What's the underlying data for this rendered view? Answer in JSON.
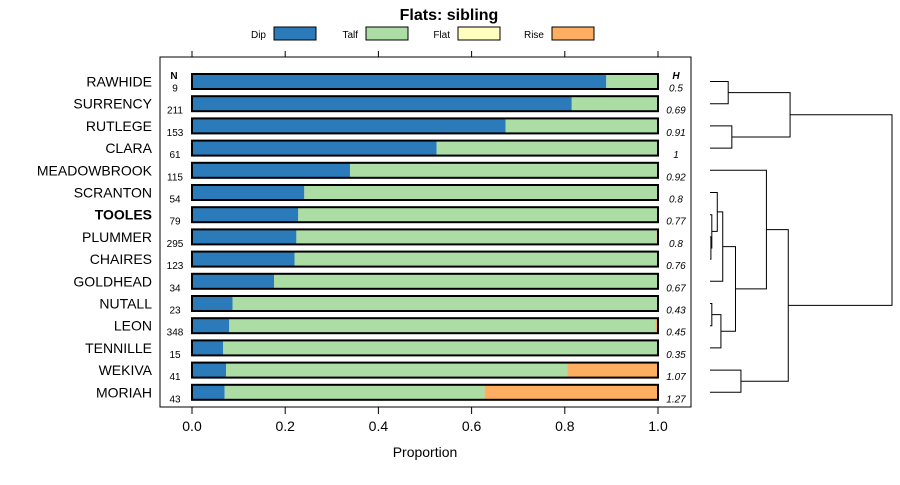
{
  "chart_data": {
    "type": "bar",
    "orientation": "horizontal",
    "stacked": true,
    "title": "Flats: sibling",
    "xlabel": "Proportion",
    "ylabel": "",
    "xlim": [
      0,
      1
    ],
    "x_ticks": [
      "0.0",
      "0.2",
      "0.4",
      "0.6",
      "0.8",
      "1.0"
    ],
    "n_header": "N",
    "h_header": "H",
    "bold_category": "TOOLES",
    "legend": [
      {
        "name": "Dip",
        "color": "#2b7bba"
      },
      {
        "name": "Talf",
        "color": "#abdda4"
      },
      {
        "name": "Flat",
        "color": "#ffffbf"
      },
      {
        "name": "Rise",
        "color": "#fdae61"
      }
    ],
    "categories": [
      "RAWHIDE",
      "SURRENCY",
      "RUTLEGE",
      "CLARA",
      "MEADOWBROOK",
      "SCRANTON",
      "TOOLES",
      "PLUMMER",
      "CHAIRES",
      "GOLDHEAD",
      "NUTALL",
      "LEON",
      "TENNILLE",
      "WEKIVA",
      "MORIAH"
    ],
    "n_values": [
      "9",
      "211",
      "153",
      "61",
      "115",
      "54",
      "79",
      "295",
      "123",
      "34",
      "23",
      "348",
      "15",
      "41",
      "43"
    ],
    "h_values": [
      "0.5",
      "0.69",
      "0.91",
      "1",
      "0.92",
      "0.8",
      "0.77",
      "0.8",
      "0.76",
      "0.67",
      "0.43",
      "0.45",
      "0.35",
      "1.07",
      "1.27"
    ],
    "series": [
      {
        "name": "Dip",
        "values": [
          0.889,
          0.815,
          0.673,
          0.525,
          0.339,
          0.241,
          0.228,
          0.224,
          0.22,
          0.176,
          0.087,
          0.08,
          0.067,
          0.073,
          0.07
        ]
      },
      {
        "name": "Talf",
        "values": [
          0.111,
          0.185,
          0.327,
          0.475,
          0.661,
          0.759,
          0.772,
          0.773,
          0.78,
          0.824,
          0.913,
          0.914,
          0.933,
          0.732,
          0.558
        ]
      },
      {
        "name": "Flat",
        "values": [
          0,
          0,
          0,
          0,
          0,
          0,
          0,
          0,
          0,
          0,
          0,
          0,
          0,
          0,
          0
        ]
      },
      {
        "name": "Rise",
        "values": [
          0,
          0,
          0,
          0,
          0,
          0,
          0,
          0.003,
          0,
          0,
          0,
          0.006,
          0,
          0.195,
          0.372
        ]
      }
    ],
    "dendrogram": {
      "description": "hierarchical clustering of the categories",
      "merges": [
        [
          "RAWHIDE",
          "SURRENCY",
          0.1
        ],
        [
          "RUTLEGE",
          "CLARA",
          0.12
        ],
        [
          "PLUMMER",
          "CHAIRES",
          0.005
        ],
        [
          "TOOLES",
          "PLUMMER+CHAIRES",
          0.01
        ],
        [
          "SCRANTON",
          "TOOLES+PLUMMER+CHAIRES",
          0.04
        ],
        [
          "SCRANTON+TOOLES+PLUMMER+CHAIRES",
          "GOLDHEAD",
          0.07
        ],
        [
          "NUTALL",
          "LEON",
          0.01
        ],
        [
          "NUTALL+LEON",
          "TENNILLE",
          0.06
        ],
        [
          "SCRANTON+TOOLES+PLUMMER+CHAIRES+GOLDHEAD",
          "NUTALL+LEON+TENNILLE",
          0.14
        ],
        [
          "MEADOWBROOK",
          "SCRANTON+TOOLES+PLUMMER+CHAIRES+GOLDHEAD+NUTALL+LEON+TENNILLE",
          0.31
        ],
        [
          "WEKIVA",
          "MORIAH",
          0.17
        ],
        [
          "MEADOWBROOK+SCRANTON+TOOLES+PLUMMER+CHAIRES+GOLDHEAD+NUTALL+LEON+TENNILLE",
          "WEKIVA+MORIAH",
          0.43
        ],
        [
          "RAWHIDE+SURRENCY",
          "RUTLEGE+CLARA",
          0.44
        ],
        [
          "RAWHIDE+SURRENCY+RUTLEGE+CLARA",
          "MEADOWBROOK+SCRANTON+TOOLES+PLUMMER+CHAIRES+GOLDHEAD+NUTALL+LEON+TENNILLE+WEKIVA+MORIAH",
          1.0
        ]
      ]
    }
  }
}
